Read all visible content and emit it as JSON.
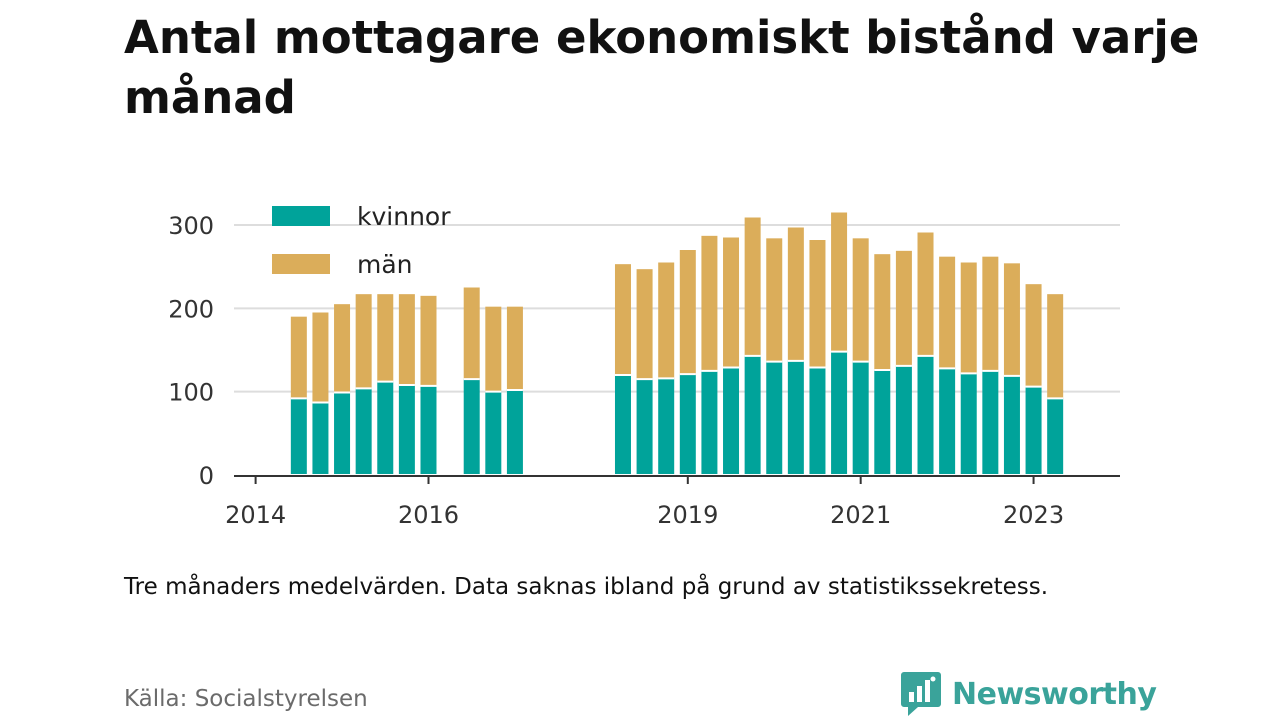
{
  "chart_data": {
    "type": "bar",
    "stacked": true,
    "title": "Antal mottagare ekonomiskt bistånd varje månad",
    "subtitle": "",
    "xlabel": "",
    "ylabel": "",
    "ylim": [
      0,
      330
    ],
    "yticks": [
      0,
      100,
      200,
      300
    ],
    "xticks": [
      {
        "label": "2014",
        "x": 2014.0
      },
      {
        "label": "2016",
        "x": 2016.0
      },
      {
        "label": "2019",
        "x": 2019.0
      },
      {
        "label": "2021",
        "x": 2021.0
      },
      {
        "label": "2023",
        "x": 2023.0
      }
    ],
    "xlim": [
      2013.75,
      2024.0
    ],
    "grid": true,
    "legend_position": "top-left",
    "colors": {
      "kvinnor": "#00a39a",
      "man": "#dbad5a",
      "axis": "#333333",
      "grid": "#dddddd"
    },
    "series": [
      {
        "name": "kvinnor",
        "key": "kvinnor"
      },
      {
        "name": "män",
        "key": "man"
      }
    ],
    "points": [
      {
        "x": 2014.5,
        "kvinnor": 92,
        "man": 98
      },
      {
        "x": 2014.75,
        "kvinnor": 87,
        "man": 108
      },
      {
        "x": 2015.0,
        "kvinnor": 99,
        "man": 106
      },
      {
        "x": 2015.25,
        "kvinnor": 104,
        "man": 113
      },
      {
        "x": 2015.5,
        "kvinnor": 112,
        "man": 105
      },
      {
        "x": 2015.75,
        "kvinnor": 108,
        "man": 109
      },
      {
        "x": 2016.0,
        "kvinnor": 107,
        "man": 108
      },
      {
        "x": 2016.5,
        "kvinnor": 115,
        "man": 110
      },
      {
        "x": 2016.75,
        "kvinnor": 100,
        "man": 102
      },
      {
        "x": 2017.0,
        "kvinnor": 102,
        "man": 100
      },
      {
        "x": 2018.25,
        "kvinnor": 120,
        "man": 133
      },
      {
        "x": 2018.5,
        "kvinnor": 115,
        "man": 132
      },
      {
        "x": 2018.75,
        "kvinnor": 116,
        "man": 139
      },
      {
        "x": 2019.0,
        "kvinnor": 121,
        "man": 149
      },
      {
        "x": 2019.25,
        "kvinnor": 125,
        "man": 162
      },
      {
        "x": 2019.5,
        "kvinnor": 129,
        "man": 156
      },
      {
        "x": 2019.75,
        "kvinnor": 143,
        "man": 166
      },
      {
        "x": 2020.0,
        "kvinnor": 136,
        "man": 148
      },
      {
        "x": 2020.25,
        "kvinnor": 137,
        "man": 160
      },
      {
        "x": 2020.5,
        "kvinnor": 129,
        "man": 153
      },
      {
        "x": 2020.75,
        "kvinnor": 148,
        "man": 167
      },
      {
        "x": 2021.0,
        "kvinnor": 136,
        "man": 148
      },
      {
        "x": 2021.25,
        "kvinnor": 126,
        "man": 139
      },
      {
        "x": 2021.5,
        "kvinnor": 131,
        "man": 138
      },
      {
        "x": 2021.75,
        "kvinnor": 143,
        "man": 148
      },
      {
        "x": 2022.0,
        "kvinnor": 128,
        "man": 134
      },
      {
        "x": 2022.25,
        "kvinnor": 122,
        "man": 133
      },
      {
        "x": 2022.5,
        "kvinnor": 125,
        "man": 137
      },
      {
        "x": 2022.75,
        "kvinnor": 119,
        "man": 135
      },
      {
        "x": 2023.0,
        "kvinnor": 106,
        "man": 123
      },
      {
        "x": 2023.25,
        "kvinnor": 92,
        "man": 125
      }
    ]
  },
  "note": "Tre månaders medelvärden. Data saknas ibland på grund av statistikssekretess.",
  "source": "Källa: Socialstyrelsen",
  "brand": {
    "name": "Newsworthy",
    "icon": "newsworthy-logo-icon",
    "color": "#3aa39a"
  }
}
